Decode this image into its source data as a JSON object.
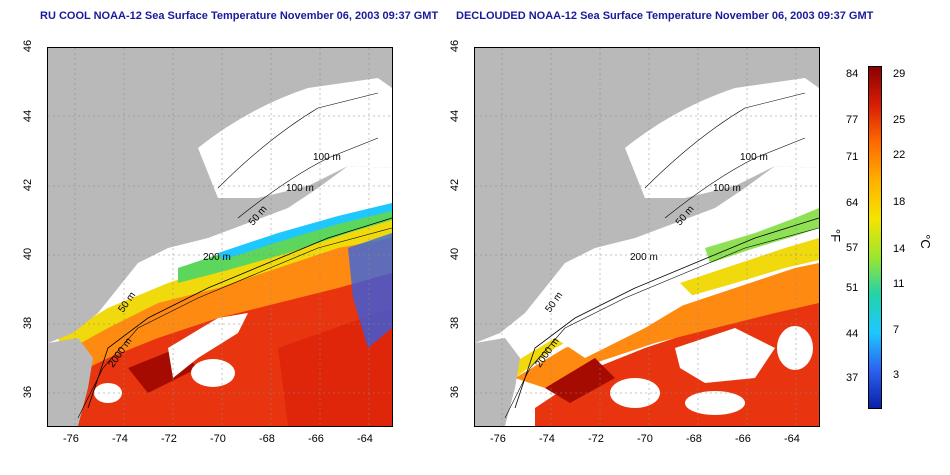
{
  "panels": [
    {
      "title": "RU COOL NOAA-12 Sea Surface Temperature November 06, 2003 09:37 GMT"
    },
    {
      "title": "DECLOUDED NOAA-12 Sea Surface Temperature November 06, 2003 09:37 GMT"
    }
  ],
  "axes": {
    "y_ticks": [
      "46",
      "44",
      "42",
      "40",
      "38",
      "36"
    ],
    "x_ticks": [
      "-76",
      "-74",
      "-72",
      "-70",
      "-68",
      "-66",
      "-64"
    ]
  },
  "contours": [
    "100 m",
    "100 m",
    "50 m",
    "200 m",
    "50 m",
    "2000 m"
  ],
  "contours_right": [
    "100 m",
    "100 m",
    "50 m",
    "200 m",
    "50 m",
    "2000 m"
  ],
  "colorbar": {
    "fahrenheit_ticks": [
      "84",
      "77",
      "71",
      "64",
      "57",
      "51",
      "44",
      "37"
    ],
    "celsius_ticks": [
      "29",
      "25",
      "22",
      "18",
      "14",
      "11",
      "7",
      "3"
    ],
    "fahrenheit_unit": "°F",
    "celsius_unit": "°C",
    "colors": [
      "#8b0000",
      "#d81e05",
      "#ff6a00",
      "#ffb000",
      "#f5e400",
      "#9ee62c",
      "#22d3a8",
      "#1ec8ff",
      "#2a62f0",
      "#0b1fa8"
    ]
  },
  "colors": {
    "land": "#b9b9b9",
    "cloud": "#ffffff",
    "title": "#1a1a9c"
  }
}
